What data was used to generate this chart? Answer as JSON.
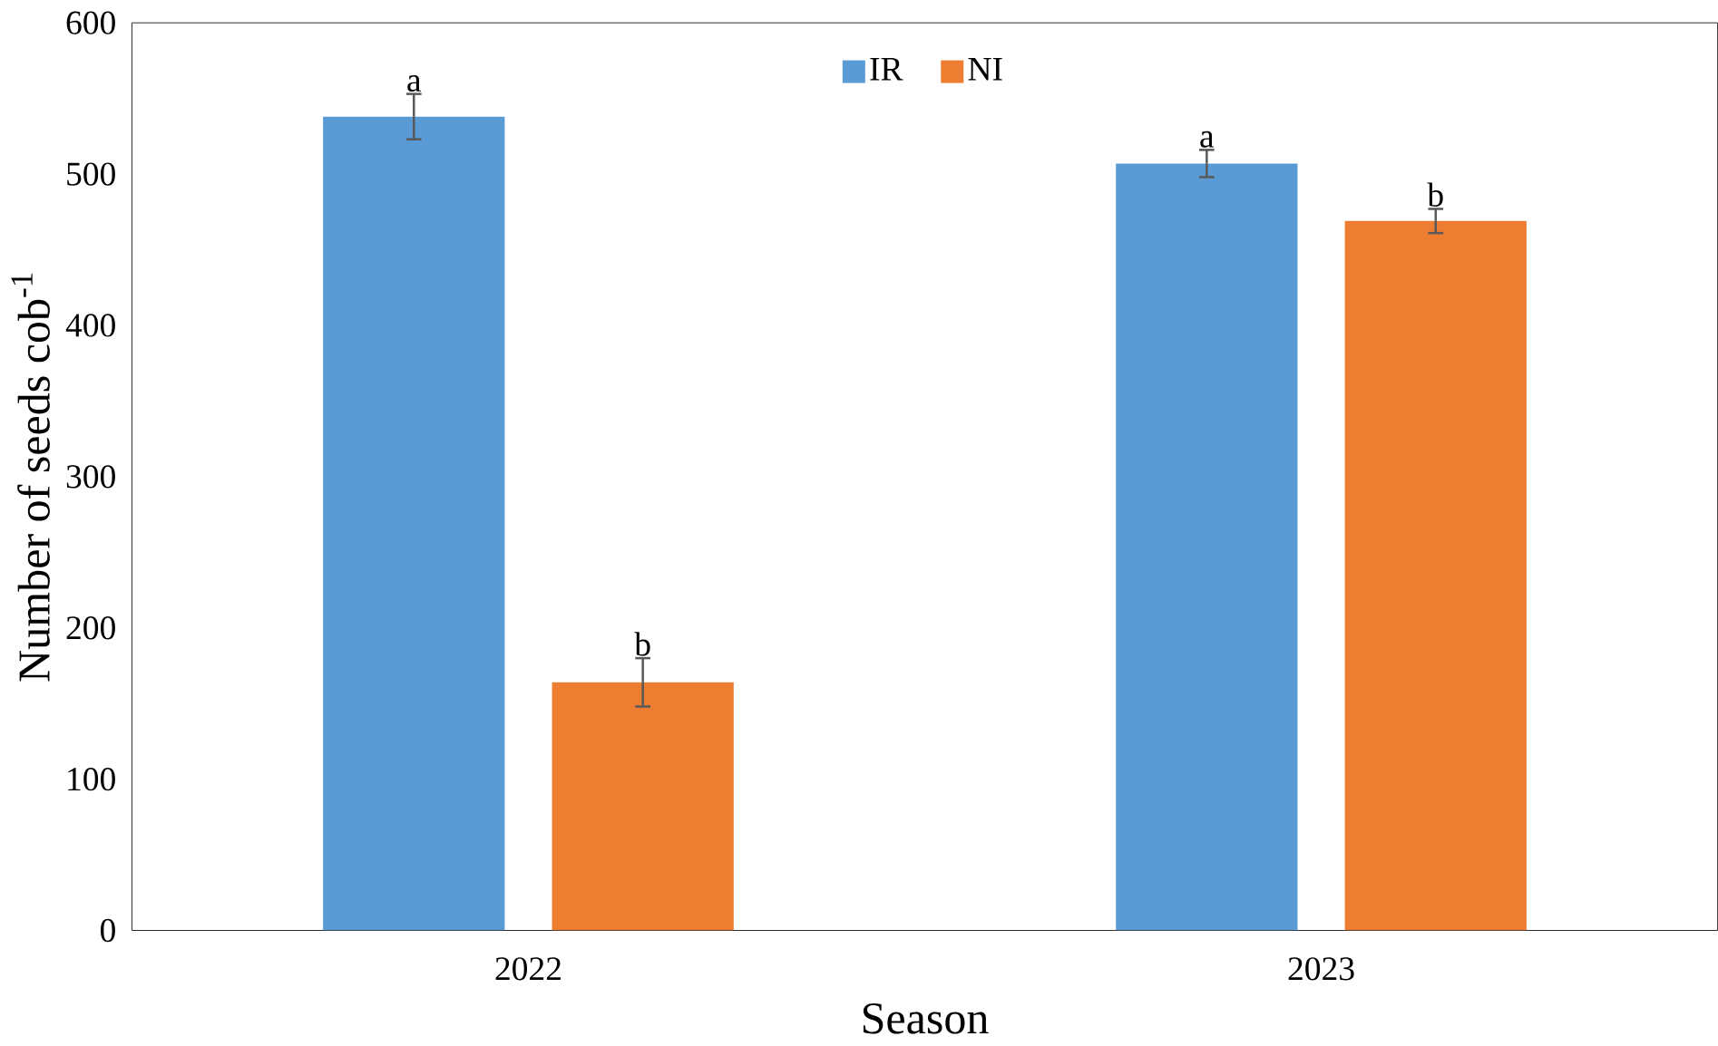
{
  "chart_data": {
    "type": "bar",
    "xlabel": "Season",
    "ylabel": "Number of seeds cob$^{-1}$",
    "categories": [
      "2022",
      "2023"
    ],
    "series": [
      {
        "name": "IR",
        "color": "#5b9bd5",
        "values": [
          538,
          507
        ],
        "errors": [
          15,
          9
        ],
        "value_labels": [
          "a",
          "a"
        ]
      },
      {
        "name": "NI",
        "color": "#ed7d31",
        "values": [
          164,
          469
        ],
        "errors": [
          16,
          8
        ],
        "value_labels": [
          "b",
          "b"
        ]
      }
    ],
    "ylim": [
      0,
      600
    ],
    "yticks": [
      0,
      100,
      200,
      300,
      400,
      500,
      600
    ],
    "grid": false,
    "legend": "top"
  }
}
